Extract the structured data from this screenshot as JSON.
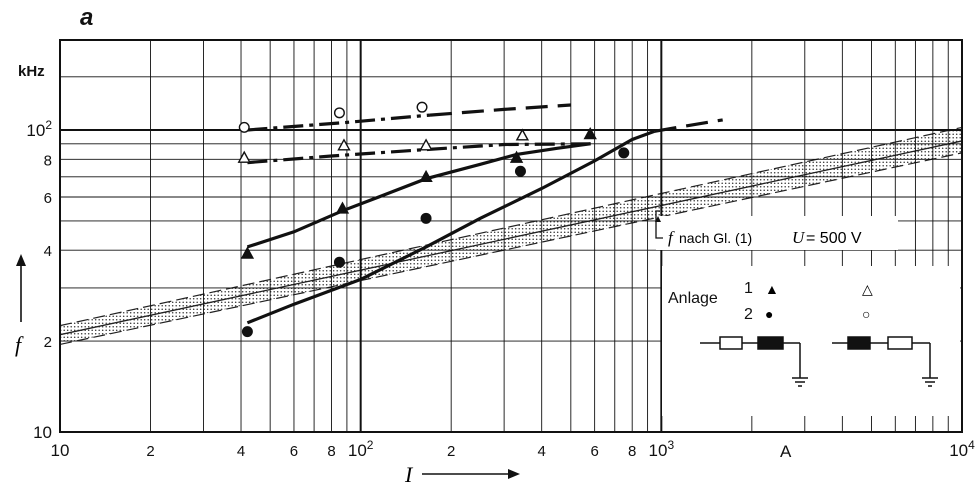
{
  "chart_data": {
    "type": "scatter",
    "panel_label": "a",
    "x_scale": "log",
    "y_scale": "log",
    "xlim": [
      10,
      10000
    ],
    "ylim": [
      10,
      150
    ],
    "x_unit": "A",
    "y_unit": "kHz",
    "xlabel": "I",
    "ylabel": "f",
    "x_ticks": [
      {
        "v": 10,
        "t": "10"
      },
      {
        "v": 20,
        "t": "2"
      },
      {
        "v": 40,
        "t": "4"
      },
      {
        "v": 60,
        "t": "6"
      },
      {
        "v": 80,
        "t": "8"
      },
      {
        "v": 100,
        "t": "10",
        "sup": "2"
      },
      {
        "v": 200,
        "t": "2"
      },
      {
        "v": 400,
        "t": "4"
      },
      {
        "v": 600,
        "t": "6"
      },
      {
        "v": 800,
        "t": "8"
      },
      {
        "v": 1000,
        "t": "10",
        "sup": "3"
      },
      {
        "v": 10000,
        "t": "10",
        "sup": "4"
      }
    ],
    "y_ticks": [
      {
        "v": 10,
        "t": "10"
      },
      {
        "v": 20,
        "t": "2"
      },
      {
        "v": 40,
        "t": "4"
      },
      {
        "v": 60,
        "t": "6"
      },
      {
        "v": 80,
        "t": "8"
      },
      {
        "v": 100,
        "t": "10",
        "sup": "2"
      }
    ],
    "grid": true,
    "legend": {
      "title": "Anlage",
      "rows": [
        {
          "label": "1",
          "filled": "▲",
          "open": "△"
        },
        {
          "label": "2",
          "filled": "●",
          "open": "○"
        }
      ]
    },
    "annotation": {
      "f_label": "f",
      "f_text": "nach Gl. (1)",
      "u_label": "U",
      "u_text": " = 500 V"
    },
    "series": [
      {
        "marker": "triangle-filled",
        "points": [
          [
            42,
            39
          ],
          [
            87,
            55
          ],
          [
            165,
            70
          ],
          [
            330,
            81
          ],
          [
            580,
            97
          ]
        ]
      },
      {
        "marker": "circle-filled",
        "points": [
          [
            42,
            21.5
          ],
          [
            85,
            36.5
          ],
          [
            165,
            51
          ],
          [
            340,
            73
          ],
          [
            750,
            84
          ]
        ]
      },
      {
        "marker": "triangle-open",
        "points": [
          [
            41,
            81
          ],
          [
            88,
            89
          ],
          [
            165,
            89
          ],
          [
            345,
            96
          ]
        ]
      },
      {
        "marker": "circle-open",
        "points": [
          [
            41,
            102
          ],
          [
            85,
            114
          ],
          [
            160,
            119
          ]
        ]
      }
    ],
    "curves": [
      {
        "style": "solid",
        "points": [
          [
            42,
            41
          ],
          [
            60,
            46
          ],
          [
            87,
            54
          ],
          [
            120,
            61
          ],
          [
            165,
            69
          ],
          [
            250,
            77
          ],
          [
            330,
            83
          ],
          [
            450,
            87
          ],
          [
            580,
            90
          ]
        ]
      },
      {
        "style": "solid",
        "points": [
          [
            42,
            23
          ],
          [
            60,
            26.5
          ],
          [
            100,
            32
          ],
          [
            165,
            41
          ],
          [
            250,
            51
          ],
          [
            400,
            64
          ],
          [
            600,
            79
          ],
          [
            800,
            93
          ],
          [
            950,
            99
          ]
        ]
      },
      {
        "style": "dashed",
        "points": [
          [
            950,
            99
          ],
          [
            1200,
            103
          ],
          [
            1600,
            108
          ]
        ]
      },
      {
        "style": "dashdot",
        "points": [
          [
            42,
            78
          ],
          [
            80,
            82
          ],
          [
            160,
            86
          ],
          [
            300,
            89.5
          ],
          [
            600,
            90
          ]
        ]
      },
      {
        "style": "dashdot",
        "points": [
          [
            42,
            100
          ],
          [
            90,
            106
          ],
          [
            170,
            112
          ]
        ]
      },
      {
        "style": "dashed",
        "points": [
          [
            170,
            112
          ],
          [
            300,
            117
          ],
          [
            500,
            121
          ]
        ]
      }
    ],
    "formula_band": {
      "center": [
        [
          10,
          21
        ],
        [
          10000,
          92
        ]
      ],
      "upper": [
        [
          10,
          22.5
        ],
        [
          10000,
          102
        ]
      ],
      "lower": [
        [
          10,
          19.5
        ],
        [
          10000,
          84
        ]
      ]
    }
  }
}
